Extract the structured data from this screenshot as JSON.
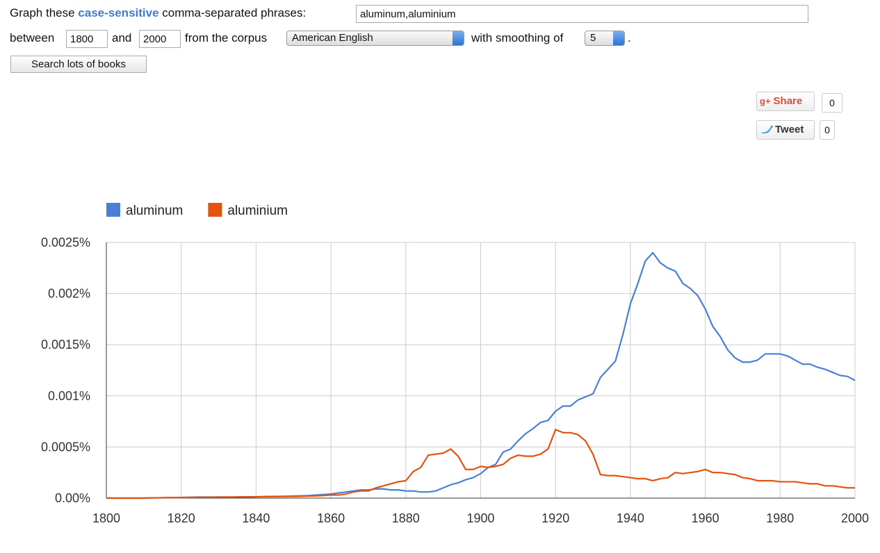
{
  "form": {
    "intro": "Graph these",
    "case_link": "case-sensitive",
    "intro_rest": "comma-separated phrases:",
    "phrases": "aluminum,aluminium",
    "between": "between",
    "start_year": "1800",
    "and": "and",
    "end_year": "2000",
    "corpus_label": "from the corpus",
    "corpus": "American English",
    "smoothing_label": "with smoothing of",
    "smoothing": "5",
    "period": ".",
    "search_button": "Search lots of books"
  },
  "social": {
    "share": "Share",
    "share_count": "0",
    "tweet": "Tweet",
    "tweet_count": "0"
  },
  "chart_data": {
    "type": "line",
    "x": [
      1800,
      1802,
      1804,
      1806,
      1808,
      1810,
      1812,
      1814,
      1816,
      1818,
      1820,
      1822,
      1824,
      1826,
      1828,
      1830,
      1832,
      1834,
      1836,
      1838,
      1840,
      1842,
      1844,
      1846,
      1848,
      1850,
      1852,
      1854,
      1856,
      1858,
      1860,
      1862,
      1864,
      1866,
      1868,
      1870,
      1872,
      1874,
      1876,
      1878,
      1880,
      1882,
      1884,
      1886,
      1888,
      1890,
      1892,
      1894,
      1896,
      1898,
      1900,
      1902,
      1904,
      1906,
      1908,
      1910,
      1912,
      1914,
      1916,
      1918,
      1920,
      1922,
      1924,
      1926,
      1928,
      1930,
      1932,
      1934,
      1936,
      1938,
      1940,
      1942,
      1944,
      1946,
      1948,
      1950,
      1952,
      1954,
      1956,
      1958,
      1960,
      1962,
      1964,
      1966,
      1968,
      1970,
      1972,
      1974,
      1976,
      1978,
      1980,
      1982,
      1984,
      1986,
      1988,
      1990,
      1992,
      1994,
      1996,
      1998,
      2000
    ],
    "series": [
      {
        "name": "aluminum",
        "color": "#4a7fd9",
        "values": [
          0,
          0,
          0,
          0,
          0,
          0,
          2e-06,
          3e-06,
          4e-06,
          5e-06,
          6e-06,
          8e-06,
          1e-05,
          1e-05,
          1e-05,
          1e-05,
          1e-05,
          1e-05,
          1.2e-05,
          1.2e-05,
          1.3e-05,
          1.5e-05,
          1.6e-05,
          1.7e-05,
          1.8e-05,
          2e-05,
          2.2e-05,
          2.5e-05,
          3e-05,
          3.5e-05,
          4e-05,
          5e-05,
          6e-05,
          7e-05,
          8e-05,
          8e-05,
          9e-05,
          9e-05,
          8e-05,
          8e-05,
          7e-05,
          7e-05,
          6e-05,
          6e-05,
          7e-05,
          0.0001,
          0.00013,
          0.00015,
          0.00018,
          0.0002,
          0.00024,
          0.0003,
          0.00033,
          0.00045,
          0.00048,
          0.00056,
          0.00063,
          0.00068,
          0.00074,
          0.00076,
          0.00085,
          0.0009,
          0.0009,
          0.00096,
          0.00099,
          0.00102,
          0.00118,
          0.00126,
          0.00134,
          0.0016,
          0.0019,
          0.0021,
          0.00232,
          0.0024,
          0.0023,
          0.00225,
          0.00222,
          0.0021,
          0.00205,
          0.00198,
          0.00185,
          0.00168,
          0.00158,
          0.00145,
          0.00137,
          0.00133,
          0.00133,
          0.00135,
          0.00141,
          0.00141,
          0.00141,
          0.00139,
          0.00135,
          0.00131,
          0.00131,
          0.00128,
          0.00126,
          0.00123,
          0.0012,
          0.00119,
          0.00115
        ]
      },
      {
        "name": "aluminium",
        "color": "#e4520d",
        "values": [
          0,
          0,
          0,
          0,
          0,
          0,
          2e-06,
          3e-06,
          4e-06,
          5e-06,
          6e-06,
          7e-06,
          8e-06,
          8e-06,
          9e-06,
          1e-05,
          1e-05,
          1e-05,
          1.2e-05,
          1.2e-05,
          1.3e-05,
          1.4e-05,
          1.5e-05,
          1.5e-05,
          1.6e-05,
          1.7e-05,
          1.8e-05,
          2e-05,
          2.2e-05,
          2.5e-05,
          3e-05,
          3e-05,
          4e-05,
          6e-05,
          7e-05,
          7e-05,
          0.0001,
          0.00012,
          0.00014,
          0.00016,
          0.00017,
          0.00026,
          0.0003,
          0.00042,
          0.00043,
          0.00044,
          0.00048,
          0.00041,
          0.00028,
          0.00028,
          0.00031,
          0.0003,
          0.00031,
          0.00033,
          0.00039,
          0.00042,
          0.00041,
          0.00041,
          0.00043,
          0.00048,
          0.00067,
          0.00064,
          0.00064,
          0.00062,
          0.00056,
          0.00043,
          0.00023,
          0.00022,
          0.00022,
          0.00021,
          0.0002,
          0.00019,
          0.00019,
          0.00017,
          0.00019,
          0.0002,
          0.00025,
          0.00024,
          0.00025,
          0.00026,
          0.00028,
          0.00025,
          0.00025,
          0.00024,
          0.00023,
          0.0002,
          0.00019,
          0.00017,
          0.00017,
          0.00017,
          0.00016,
          0.00016,
          0.00016,
          0.00015,
          0.00014,
          0.00014,
          0.00012,
          0.00012,
          0.00011,
          0.0001,
          0.0001
        ]
      }
    ],
    "xlim": [
      1800,
      2000
    ],
    "xticks": [
      1800,
      1820,
      1840,
      1860,
      1880,
      1900,
      1920,
      1940,
      1960,
      1980,
      2000
    ],
    "ylim": [
      0,
      0.0025
    ],
    "yticks": [
      {
        "value": 0,
        "label": "0.00%"
      },
      {
        "value": 0.0005,
        "label": "0.0005%"
      },
      {
        "value": 0.001,
        "label": "0.001%"
      },
      {
        "value": 0.0015,
        "label": "0.0015%"
      },
      {
        "value": 0.002,
        "label": "0.002%"
      },
      {
        "value": 0.0025,
        "label": "0.0025%"
      }
    ],
    "grid": true,
    "legend": "top-left"
  }
}
